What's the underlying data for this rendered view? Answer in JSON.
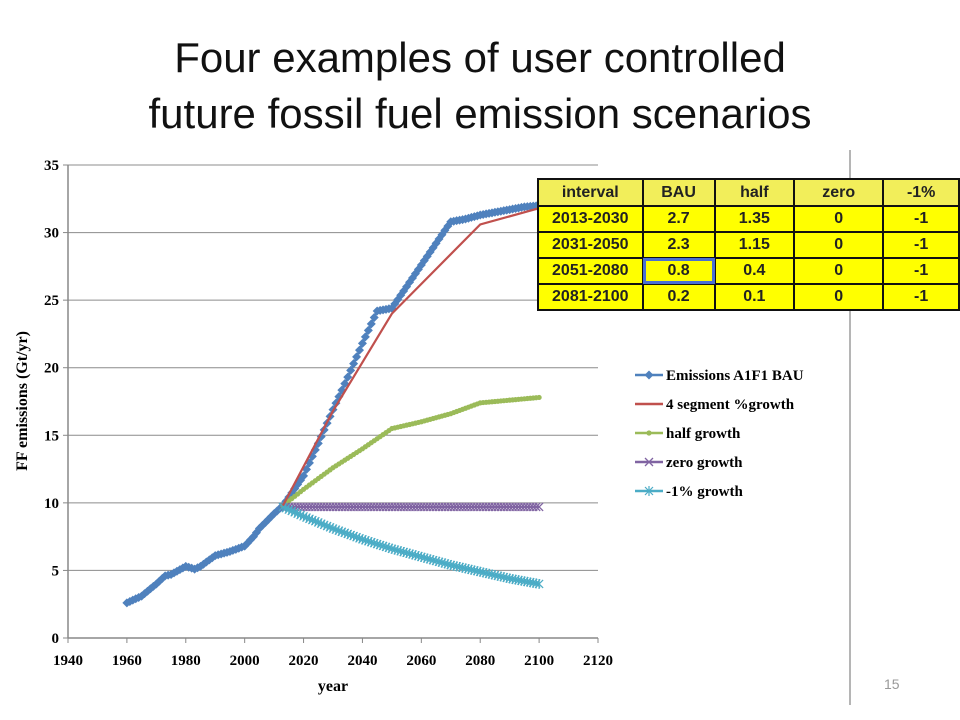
{
  "slide": {
    "title_line1": "Four examples of user controlled",
    "title_line2": "future fossil fuel emission scenarios",
    "page_number": "15"
  },
  "table": {
    "headers": [
      "interval",
      "BAU",
      "half",
      "zero",
      "-1%"
    ],
    "rows": [
      [
        "2013-2030",
        "2.7",
        "1.35",
        "0",
        "-1"
      ],
      [
        "2031-2050",
        "2.3",
        "1.15",
        "0",
        "-1"
      ],
      [
        "2051-2080",
        "0.8",
        "0.4",
        "0",
        "-1"
      ],
      [
        "2081-2100",
        "0.2",
        "0.1",
        "0",
        "-1"
      ]
    ],
    "selected_cell": "2051-2080 BAU",
    "colors": {
      "fill": "#ffff00",
      "header_fill": "#f2ee5a",
      "selection": "#4a6fd1"
    }
  },
  "chart_data": {
    "type": "line",
    "xlabel": "year",
    "ylabel": "FF emissions (Gt/yr)",
    "xlim": [
      1940,
      2120
    ],
    "ylim": [
      0,
      35
    ],
    "xticks": [
      1940,
      1960,
      1980,
      2000,
      2020,
      2040,
      2060,
      2080,
      2100,
      2120
    ],
    "yticks": [
      0,
      5,
      10,
      15,
      20,
      25,
      30,
      35
    ],
    "grid": "horizontal",
    "legend_position": "right",
    "series": [
      {
        "name": "Emissions A1F1 BAU",
        "color": "#4f81bd",
        "marker": "diamond",
        "x": [
          1960,
          1965,
          1970,
          1973,
          1975,
          1980,
          1983,
          1985,
          1990,
          1995,
          2000,
          2003,
          2005,
          2010,
          2013,
          2020,
          2025,
          2030,
          2035,
          2040,
          2045,
          2050,
          2055,
          2060,
          2065,
          2070,
          2075,
          2080,
          2085,
          2090,
          2095,
          2100
        ],
        "y": [
          2.6,
          3.1,
          4.0,
          4.6,
          4.7,
          5.3,
          5.1,
          5.3,
          6.1,
          6.4,
          6.8,
          7.5,
          8.1,
          9.2,
          9.8,
          12.0,
          14.4,
          16.9,
          19.3,
          21.8,
          24.2,
          24.4,
          26.0,
          27.6,
          29.2,
          30.8,
          31.0,
          31.3,
          31.5,
          31.7,
          31.9,
          32.0
        ]
      },
      {
        "name": "4 segment %growth",
        "color": "#c0504d",
        "marker": "none",
        "x": [
          2013,
          2030,
          2050,
          2080,
          2100
        ],
        "y": [
          9.8,
          16.8,
          24.0,
          30.6,
          31.8
        ]
      },
      {
        "name": "half growth",
        "color": "#9bbb59",
        "marker": "dot",
        "x": [
          2013,
          2020,
          2030,
          2040,
          2050,
          2060,
          2070,
          2080,
          2090,
          2100
        ],
        "y": [
          9.8,
          11.0,
          12.6,
          14.0,
          15.5,
          16.0,
          16.6,
          17.4,
          17.6,
          17.8
        ]
      },
      {
        "name": "zero growth",
        "color": "#8064a2",
        "marker": "x",
        "x": [
          2013,
          2020,
          2030,
          2040,
          2050,
          2060,
          2070,
          2080,
          2090,
          2100
        ],
        "y": [
          9.7,
          9.7,
          9.7,
          9.7,
          9.7,
          9.7,
          9.7,
          9.7,
          9.7,
          9.7
        ]
      },
      {
        "name": "-1% growth",
        "color": "#4bacc6",
        "marker": "star",
        "x": [
          2013,
          2020,
          2030,
          2040,
          2050,
          2060,
          2070,
          2080,
          2090,
          2100
        ],
        "y": [
          9.7,
          9.0,
          8.1,
          7.3,
          6.6,
          6.0,
          5.4,
          4.9,
          4.4,
          4.0
        ]
      }
    ]
  }
}
